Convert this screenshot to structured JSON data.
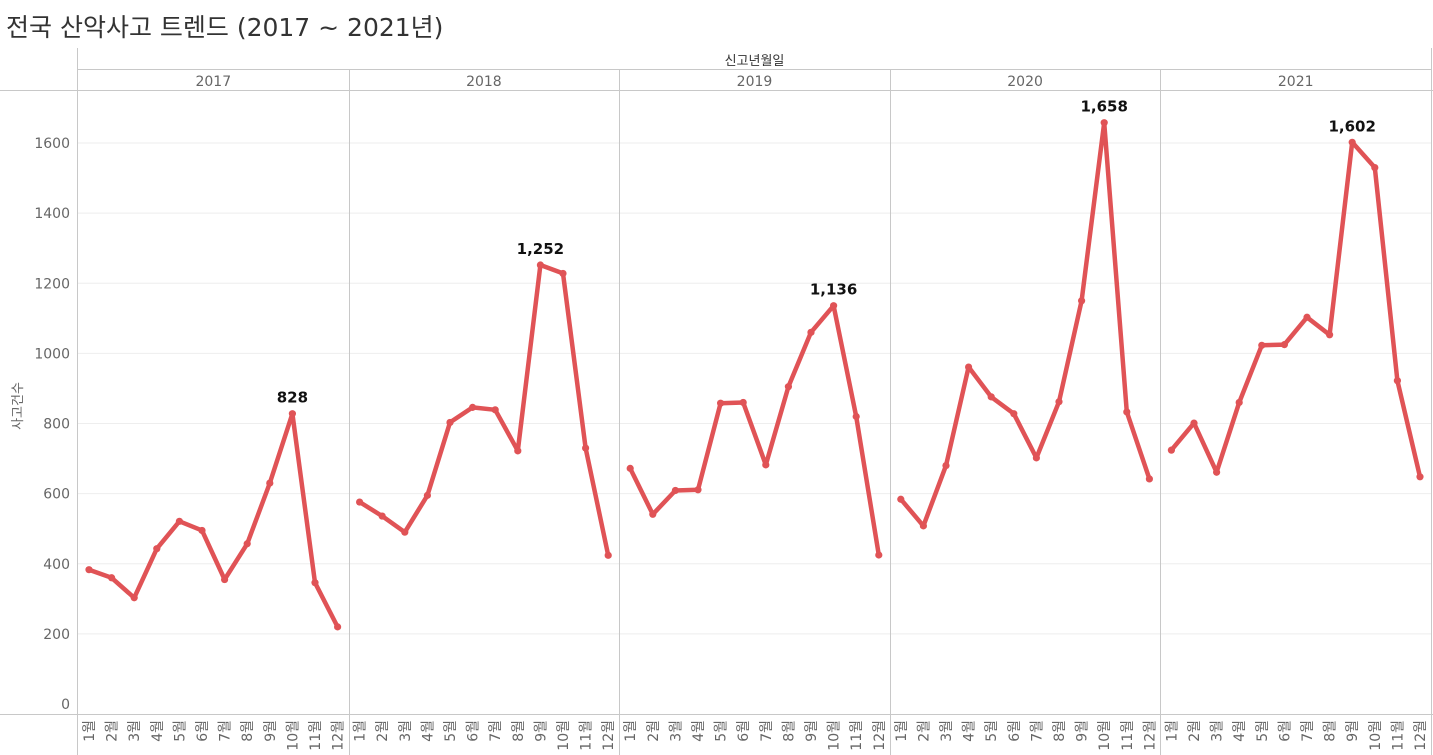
{
  "title": "전국 산악사고 트렌드 (2017 ~ 2021년)",
  "colors": {
    "line": "#e05356",
    "text": "#666666",
    "border": "#c8c8c8",
    "grid": "#eeeeee"
  },
  "chart_data": {
    "type": "line",
    "column_header": "신고년월일",
    "ylabel": "사고건수",
    "ylim": [
      0,
      1700
    ],
    "yticks": [
      0,
      200,
      400,
      600,
      800,
      1000,
      1200,
      1400,
      1600
    ],
    "grid": true,
    "month_labels": [
      "1월",
      "2월",
      "3월",
      "4월",
      "5월",
      "6월",
      "7월",
      "8월",
      "9월",
      "10월",
      "11월",
      "12월"
    ],
    "panels": [
      {
        "year": "2017",
        "values": [
          383,
          360,
          303,
          443,
          521,
          495,
          355,
          457,
          630,
          828,
          346,
          220
        ],
        "peak_label": "828"
      },
      {
        "year": "2018",
        "values": [
          576,
          536,
          490,
          595,
          803,
          846,
          839,
          722,
          1252,
          1228,
          730,
          424
        ],
        "peak_label": "1,252"
      },
      {
        "year": "2019",
        "values": [
          672,
          541,
          609,
          611,
          858,
          860,
          682,
          905,
          1060,
          1136,
          820,
          425
        ],
        "peak_label": "1,136"
      },
      {
        "year": "2020",
        "values": [
          584,
          508,
          680,
          961,
          876,
          828,
          702,
          862,
          1150,
          1658,
          833,
          642
        ],
        "peak_label": "1,658"
      },
      {
        "year": "2021",
        "values": [
          724,
          801,
          661,
          860,
          1023,
          1025,
          1103,
          1053,
          1602,
          1530,
          922,
          648
        ],
        "peak_label": "1,602"
      }
    ]
  }
}
